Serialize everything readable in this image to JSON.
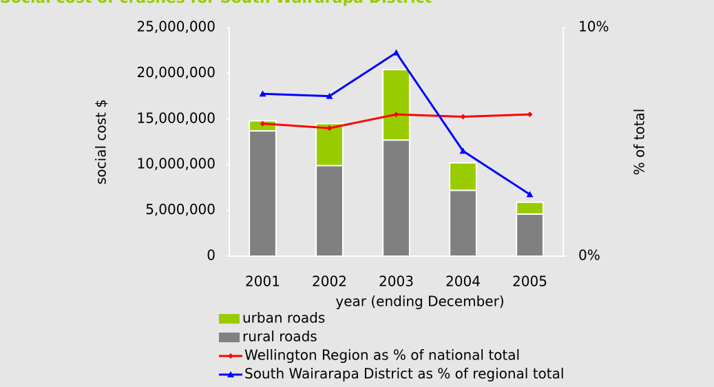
{
  "chart_data": {
    "type": "bar",
    "stacked": true,
    "title": "Social cost of crashes for South Wairarapa District",
    "xlabel": "year (ending December)",
    "ylabel": "social cost $",
    "y2label": "% of total",
    "categories": [
      "2001",
      "2002",
      "2003",
      "2004",
      "2005"
    ],
    "series": [
      {
        "name": "urban roads",
        "type": "bar",
        "color": "#99cc00",
        "values": [
          1100000,
          4600000,
          7700000,
          3000000,
          1300000
        ]
      },
      {
        "name": "rural roads",
        "type": "bar",
        "color": "#808080",
        "values": [
          13700000,
          9900000,
          12700000,
          7200000,
          4600000
        ]
      },
      {
        "name": "Wellington Region as % of national total",
        "type": "line",
        "marker": "diamond",
        "axis": "y2",
        "color": "#ff0000",
        "values": [
          5.8,
          5.6,
          6.2,
          6.1,
          6.2
        ]
      },
      {
        "name": "South Wairarapa District as % of regional total",
        "type": "line",
        "marker": "triangle",
        "axis": "y2",
        "color": "#0000ff",
        "values": [
          7.1,
          7.0,
          8.9,
          4.6,
          2.7
        ]
      }
    ],
    "ylim": [
      0,
      25000000
    ],
    "yticks": [
      0,
      {
        "value": 5000000,
        "label": "5,000,000"
      },
      {
        "value": 10000000,
        "label": "10,000,000"
      },
      {
        "value": 15000000,
        "label": "15,000,000"
      },
      {
        "value": 20000000,
        "label": "20,000,000"
      },
      {
        "value": 25000000,
        "label": "25,000,000"
      }
    ],
    "y2lim": [
      0,
      10
    ],
    "y2ticks": [
      {
        "value": 0,
        "label": "0%"
      },
      {
        "value": 10,
        "label": "10%"
      }
    ],
    "grid": false
  }
}
